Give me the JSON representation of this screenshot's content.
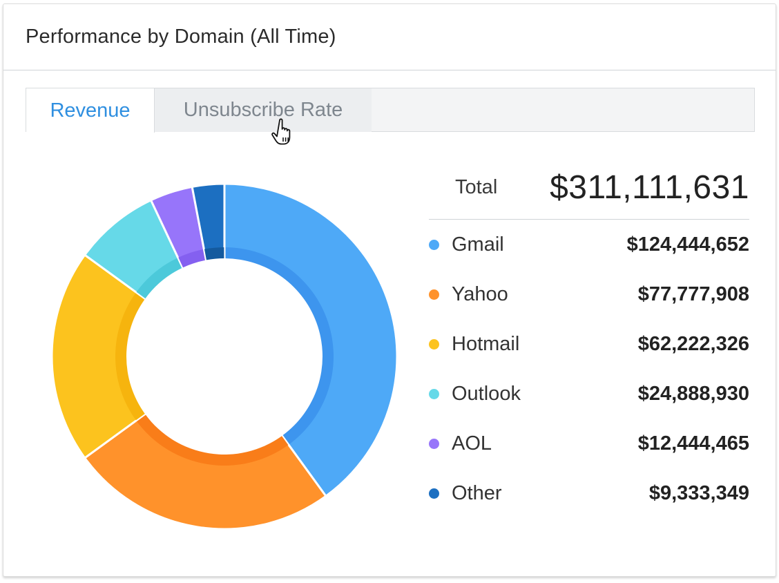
{
  "card": {
    "title": "Performance by Domain (All Time)"
  },
  "tabs": [
    {
      "label": "Revenue",
      "active": true
    },
    {
      "label": "Unsubscribe Rate",
      "active": false
    }
  ],
  "total": {
    "label": "Total",
    "value": "$311,111,631"
  },
  "legend": [
    {
      "name": "Gmail",
      "value": "$124,444,652",
      "color": "#4ea9f7"
    },
    {
      "name": "Yahoo",
      "value": "$77,777,908",
      "color": "#ff922b"
    },
    {
      "name": "Hotmail",
      "value": "$62,222,326",
      "color": "#fcc31e"
    },
    {
      "name": "Outlook",
      "value": "$24,888,930",
      "color": "#66d9e8"
    },
    {
      "name": "AOL",
      "value": "$12,444,465",
      "color": "#9775fa"
    },
    {
      "name": "Other",
      "value": "$9,333,349",
      "color": "#1c6fc1"
    }
  ],
  "chart_data": {
    "type": "pie",
    "variant": "donut",
    "categories": [
      "Gmail",
      "Yahoo",
      "Hotmail",
      "Outlook",
      "AOL",
      "Other"
    ],
    "values": [
      124444652,
      77777908,
      62222326,
      24888930,
      12444465,
      9333349
    ],
    "colors": [
      "#4ea9f7",
      "#ff922b",
      "#fcc31e",
      "#66d9e8",
      "#9775fa",
      "#1c6fc1"
    ],
    "inner_colors": [
      "#3d95ee",
      "#f97d19",
      "#f6b40e",
      "#4cc9da",
      "#8460f0",
      "#145a9e"
    ],
    "total": 311111631
  }
}
